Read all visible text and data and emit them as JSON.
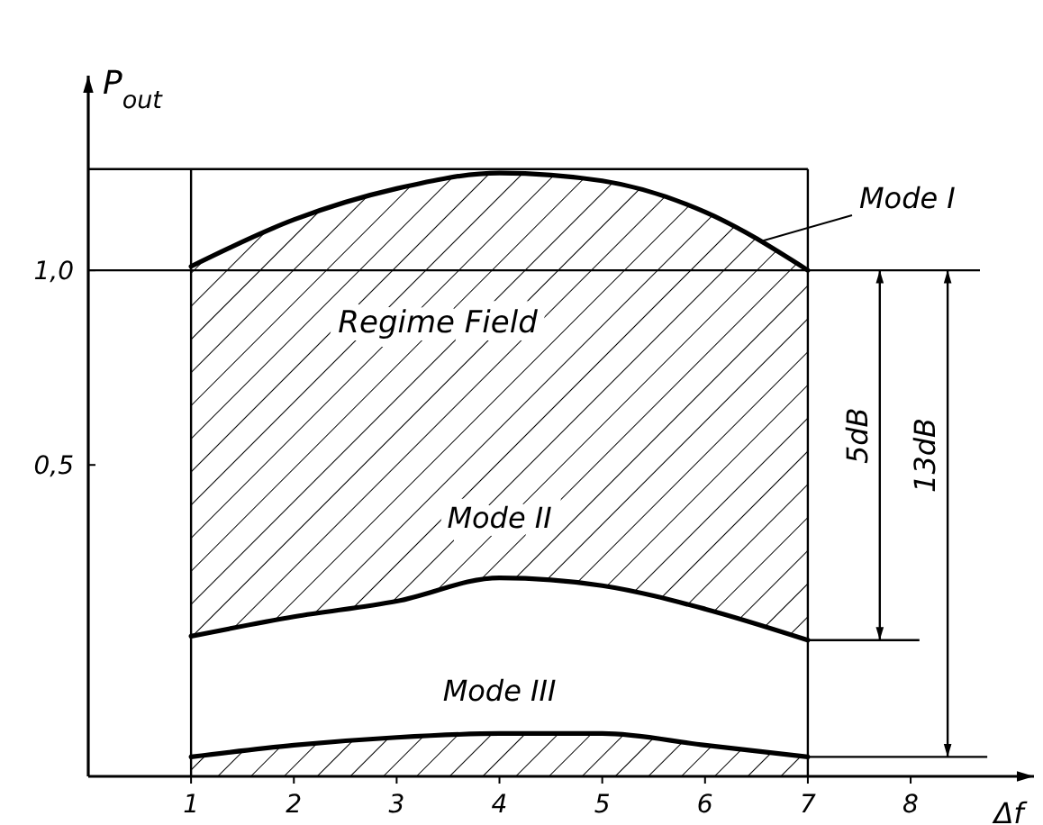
{
  "chart_data": {
    "type": "line",
    "xlabel": "Δf",
    "ylabel": "P$_{out}$",
    "x": [
      1,
      2,
      3,
      4,
      5,
      6,
      7
    ],
    "series": [
      {
        "name": "Mode I",
        "color": "#000000",
        "values": [
          1.01,
          1.13,
          1.21,
          1.25,
          1.23,
          1.15,
          1.0
        ]
      },
      {
        "name": "Mode II",
        "color": "#000000",
        "values": [
          0.06,
          0.11,
          0.15,
          0.21,
          0.19,
          0.13,
          0.05
        ]
      },
      {
        "name": "Mode III",
        "color": "#000000",
        "values": [
          -0.25,
          -0.22,
          -0.2,
          -0.19,
          -0.19,
          -0.22,
          -0.25
        ]
      }
    ],
    "xlim": [
      0,
      9.2
    ],
    "ylim": [
      -0.3,
      1.5
    ],
    "xticks": [
      1,
      2,
      3,
      4,
      5,
      6,
      7,
      8
    ],
    "yticks": [
      {
        "value": 0.5,
        "label": "0,5"
      },
      {
        "value": 1,
        "label": "1,0"
      }
    ],
    "ref_lines": [
      {
        "axis": "y",
        "value": 1
      },
      {
        "axis": "y",
        "value": 1.26
      },
      {
        "axis": "x",
        "value": 1
      },
      {
        "axis": "x",
        "value": 7
      }
    ],
    "annotations": [
      "Regime Field",
      "5dB",
      "13dB"
    ]
  }
}
